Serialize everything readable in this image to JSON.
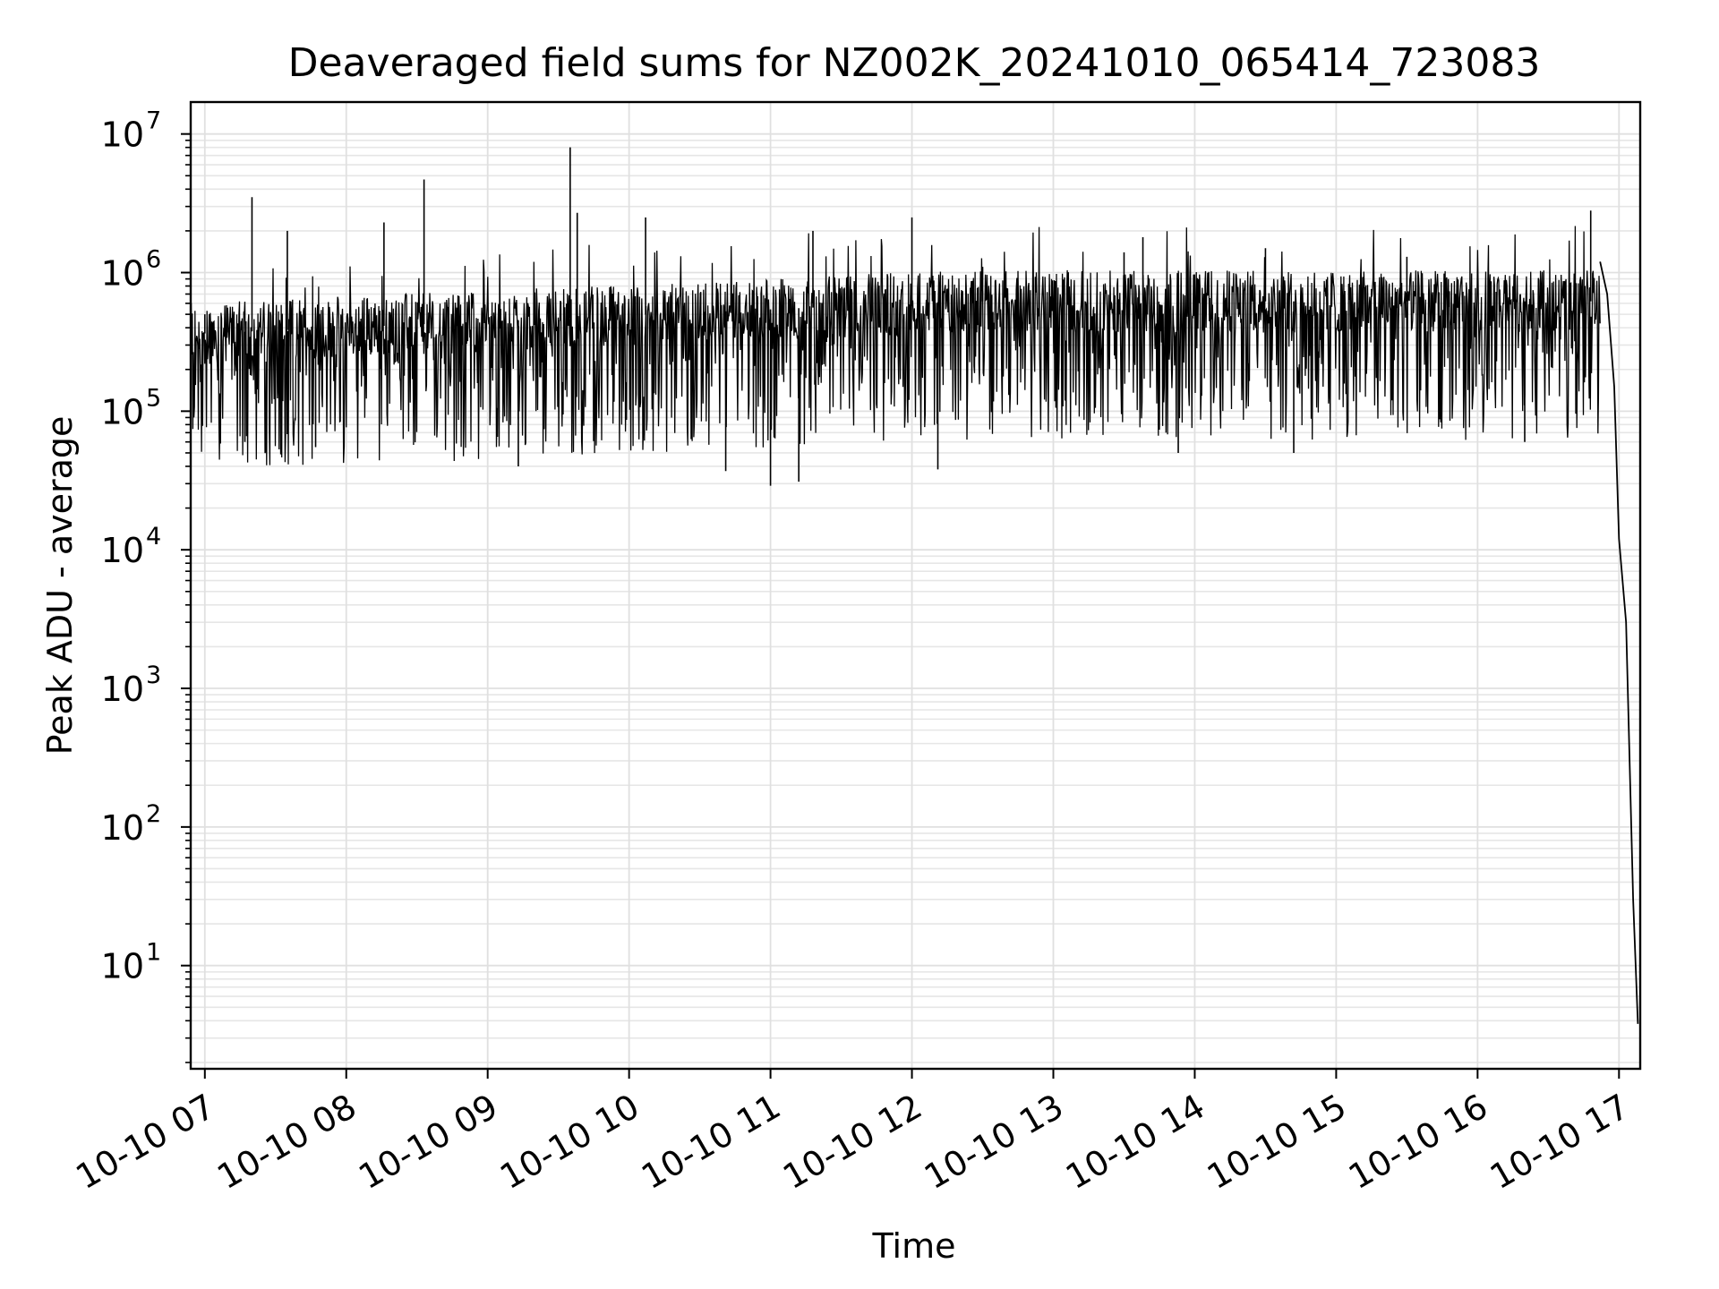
{
  "chart_data": {
    "type": "line",
    "title": "Deaveraged field sums for NZ002K_20241010_065414_723083",
    "xlabel": "Time",
    "ylabel": "Peak ADU - average",
    "yscale": "log",
    "ylim": [
      1.8,
      17000000
    ],
    "xlim": [
      "2024-10-10 06:54",
      "2024-10-10 17:09"
    ],
    "grid": true,
    "grid_minor": true,
    "x_ticks": [
      "2024-10-10 07:00",
      "2024-10-10 08:00",
      "2024-10-10 09:00",
      "2024-10-10 10:00",
      "2024-10-10 11:00",
      "2024-10-10 12:00",
      "2024-10-10 13:00",
      "2024-10-10 14:00",
      "2024-10-10 15:00",
      "2024-10-10 16:00",
      "2024-10-10 17:00"
    ],
    "x_tick_labels": [
      "10-10 07",
      "10-10 08",
      "10-10 09",
      "10-10 10",
      "10-10 11",
      "10-10 12",
      "10-10 13",
      "10-10 14",
      "10-10 15",
      "10-10 16",
      "10-10 17"
    ],
    "y_ticks": [
      {
        "base": "10",
        "exp": "1",
        "value": 10
      },
      {
        "base": "10",
        "exp": "2",
        "value": 100
      },
      {
        "base": "10",
        "exp": "3",
        "value": 1000
      },
      {
        "base": "10",
        "exp": "4",
        "value": 10000
      },
      {
        "base": "10",
        "exp": "5",
        "value": 100000
      },
      {
        "base": "10",
        "exp": "6",
        "value": 1000000
      },
      {
        "base": "10",
        "exp": "7",
        "value": 10000000
      }
    ],
    "series": [
      {
        "color": "#000000",
        "points": [
          {
            "x": "2024-10-10 06:54",
            "y": 650000
          },
          {
            "x": "2024-10-10 07:00",
            "y": 500000
          },
          {
            "x": "2024-10-10 07:10",
            "y": 400000
          },
          {
            "x": "2024-10-10 07:17",
            "y": 60000
          },
          {
            "x": "2024-10-10 07:20",
            "y": 3500000
          },
          {
            "x": "2024-10-10 07:35",
            "y": 2000000
          },
          {
            "x": "2024-10-10 07:47",
            "y": 55000
          },
          {
            "x": "2024-10-10 08:16",
            "y": 2300000
          },
          {
            "x": "2024-10-10 08:33",
            "y": 4700000
          },
          {
            "x": "2024-10-10 09:13",
            "y": 40000
          },
          {
            "x": "2024-10-10 09:35",
            "y": 8000000
          },
          {
            "x": "2024-10-10 09:38",
            "y": 2700000
          },
          {
            "x": "2024-10-10 10:07",
            "y": 2500000
          },
          {
            "x": "2024-10-10 10:41",
            "y": 37000
          },
          {
            "x": "2024-10-10 11:00",
            "y": 29000
          },
          {
            "x": "2024-10-10 11:12",
            "y": 31000
          },
          {
            "x": "2024-10-10 11:18",
            "y": 2000000
          },
          {
            "x": "2024-10-10 12:00",
            "y": 2500000
          },
          {
            "x": "2024-10-10 12:11",
            "y": 38000
          },
          {
            "x": "2024-10-10 12:30",
            "y": 1100000
          },
          {
            "x": "2024-10-10 13:30",
            "y": 1400000
          },
          {
            "x": "2024-10-10 13:38",
            "y": 1800000
          },
          {
            "x": "2024-10-10 13:53",
            "y": 50000
          },
          {
            "x": "2024-10-10 14:30",
            "y": 1500000
          },
          {
            "x": "2024-10-10 14:42",
            "y": 50000
          },
          {
            "x": "2024-10-10 15:30",
            "y": 1300000
          },
          {
            "x": "2024-10-10 16:20",
            "y": 60000
          },
          {
            "x": "2024-10-10 16:45",
            "y": 500000
          },
          {
            "x": "2024-10-10 16:48",
            "y": 2800000
          },
          {
            "x": "2024-10-10 16:52",
            "y": 1200000
          },
          {
            "x": "2024-10-10 16:55",
            "y": 700000
          },
          {
            "x": "2024-10-10 16:58",
            "y": 150000
          },
          {
            "x": "2024-10-10 17:00",
            "y": 12000
          },
          {
            "x": "2024-10-10 17:03",
            "y": 3000
          },
          {
            "x": "2024-10-10 17:06",
            "y": 30
          },
          {
            "x": "2024-10-10 17:08",
            "y": 3.8
          }
        ]
      }
    ]
  }
}
